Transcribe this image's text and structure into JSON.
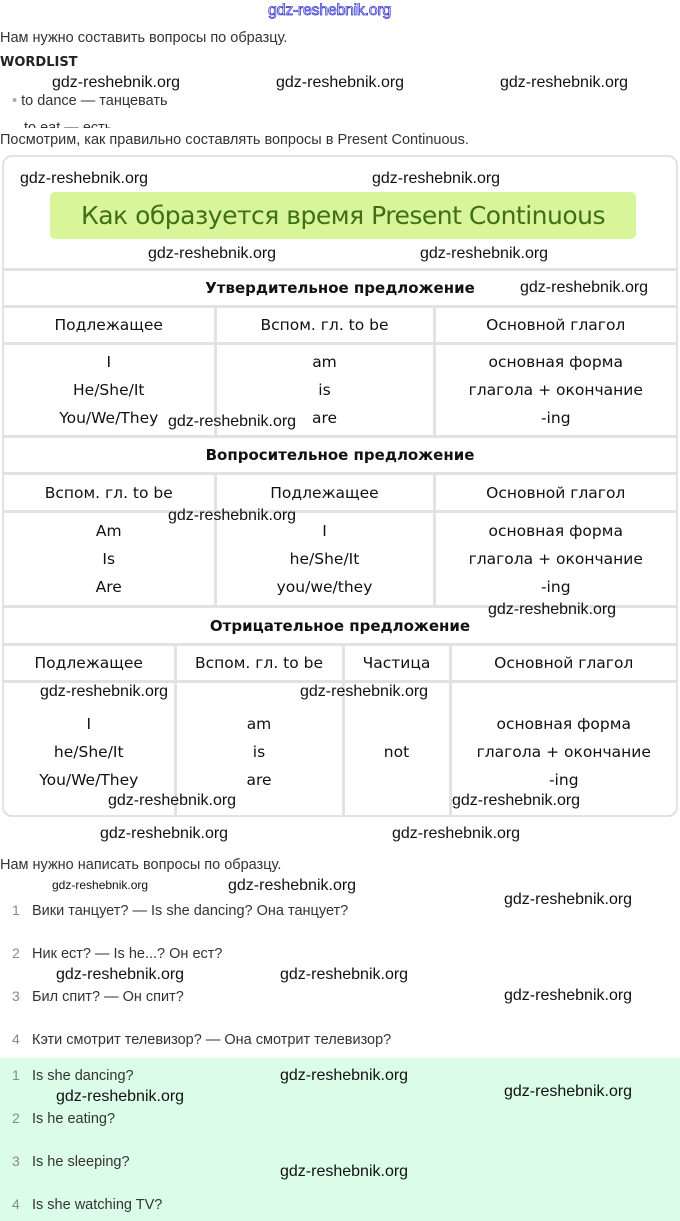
{
  "watermark": "gdz-reshebnik.org",
  "intro": "Нам нужно составить вопросы по образцу.",
  "wordlist": {
    "heading": "WORDLIST",
    "items": [
      "to dance — танцевать",
      "to eat — есть"
    ]
  },
  "lead": "Посмотрим, как правильно составлять вопросы в Present Continuous.",
  "table": {
    "title": "Как образуется время Present Continuous",
    "affirmative": {
      "heading": "Утвердительное предложение",
      "columns": [
        "Подлежащее",
        "Вспом. гл. to be",
        "Основной глагол"
      ],
      "subjects": [
        "I",
        "He/She/It",
        "You/We/They"
      ],
      "aux": [
        "am",
        "is",
        "are"
      ],
      "verb": [
        "основная форма",
        "глагола + окончание",
        "-ing"
      ]
    },
    "interrogative": {
      "heading": "Вопросительное предложение",
      "columns": [
        "Вспом. гл. to be",
        "Подлежащее",
        "Основной глагол"
      ],
      "aux": [
        "Am",
        "Is",
        "Are"
      ],
      "subjects": [
        "I",
        "he/She/It",
        "you/we/they"
      ],
      "verb": [
        "основная форма",
        "глагола + окончание",
        "-ing"
      ]
    },
    "negative": {
      "heading": "Отрицательное предложение",
      "columns": [
        "Подлежащее",
        "Вспом. гл. to be",
        "Частица",
        "Основной глагол"
      ],
      "subjects": [
        "I",
        "he/She/It",
        "You/We/They"
      ],
      "aux": [
        "am",
        "is",
        "are"
      ],
      "particle": "not",
      "verb": [
        "основная форма",
        "глагола + окончание",
        "-ing"
      ]
    }
  },
  "task": "Нам нужно написать вопросы по образцу.",
  "questions": [
    {
      "n": "1",
      "text": "Вики танцует? — Is she dancing? Она танцует?"
    },
    {
      "n": "2",
      "text": "Ник ест? — Is he...? Он ест?"
    },
    {
      "n": "3",
      "text": "Бил спит? — Он спит?"
    },
    {
      "n": "4",
      "text": "Кэти смотрит телевизор? — Она смотрит телевизор?"
    }
  ],
  "answers": [
    {
      "n": "1",
      "text": "Is she dancing?"
    },
    {
      "n": "2",
      "text": "Is he eating?"
    },
    {
      "n": "3",
      "text": "Is he sleeping?"
    },
    {
      "n": "4",
      "text": "Is she watching TV?"
    }
  ],
  "colors": {
    "title_bg": "#d9f59a",
    "title_text": "#3f6f16",
    "answers_bg": "#dcfcea",
    "border": "#e2e2e2"
  }
}
